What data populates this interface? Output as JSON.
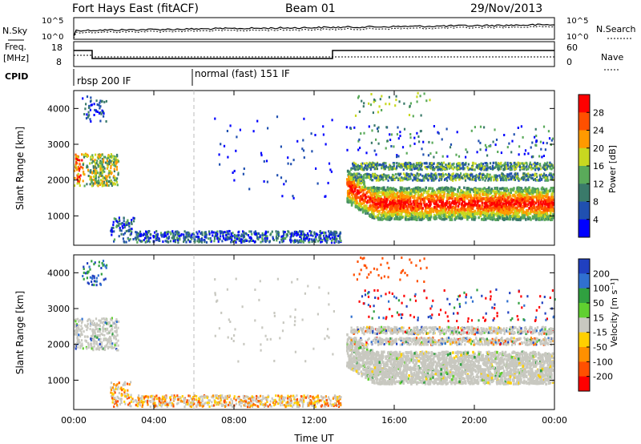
{
  "header": {
    "station_title": "Fort Hays East (fitACF)",
    "beam": "Beam 01",
    "date": "29/Nov/2013"
  },
  "noise_panel": {
    "left_label": "N.Sky",
    "right_label": "N.Search",
    "left_ticks": [
      "10^5",
      "10^0"
    ],
    "right_ticks": [
      "10^5",
      "10^0"
    ]
  },
  "freq_panel": {
    "left_label_line1": "Freq.",
    "left_label_line2": "[MHz]",
    "right_label": "Nave",
    "left_ticks": [
      "18",
      "8"
    ],
    "right_ticks": [
      "60",
      "0"
    ]
  },
  "cpid_panel": {
    "label": "CPID",
    "programs": [
      "rbsp 200 IF",
      "normal (fast) 151 IF"
    ]
  },
  "colors": {
    "power_scale": [
      "#0000ff",
      "#2050b0",
      "#3a7a6a",
      "#5aaa5a",
      "#c8d820",
      "#ff9a00",
      "#ff5000",
      "#ff0000"
    ],
    "velocity_scale": [
      "#2040c0",
      "#3070d0",
      "#30a040",
      "#60d030",
      "#c8c8c0",
      "#ffd000",
      "#ff9000",
      "#ff5000",
      "#ff0000"
    ],
    "ground_scatter": "#c8c8c0"
  },
  "chart_data": [
    {
      "type": "heatmap",
      "title": "Power",
      "xlabel": "Time UT",
      "ylabel": "Slant Range [km]",
      "colorbar_label": "Power [dB]",
      "colorbar_ticks": [
        "28",
        "24",
        "20",
        "16",
        "12",
        "8",
        "4"
      ],
      "x_ticks": [
        "00:00",
        "04:00",
        "08:00",
        "12:00",
        "16:00",
        "20:00",
        "00:00"
      ],
      "y_ticks": [
        "1000",
        "2000",
        "3000",
        "4000"
      ],
      "xlim": [
        0,
        24
      ],
      "ylim": [
        180,
        4500
      ],
      "program_change_hour": 6
    },
    {
      "type": "heatmap",
      "title": "Velocity",
      "xlabel": "Time UT",
      "ylabel": "Slant Range [km]",
      "colorbar_label": "Velocity [m s⁻¹]",
      "colorbar_ticks": [
        "200",
        "100",
        "50",
        "15",
        "-15",
        "-50",
        "-100",
        "-200"
      ],
      "x_ticks": [
        "00:00",
        "04:00",
        "08:00",
        "12:00",
        "16:00",
        "20:00",
        "00:00"
      ],
      "y_ticks": [
        "1000",
        "2000",
        "3000",
        "4000"
      ],
      "xlim": [
        0,
        24
      ],
      "ylim": [
        180,
        4500
      ],
      "program_change_hour": 6
    }
  ]
}
